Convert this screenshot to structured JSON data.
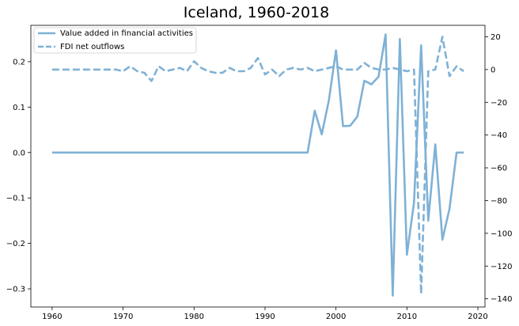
{
  "chart_data": {
    "type": "line",
    "title": "Iceland, 1960-2018",
    "colors": {
      "series": "#7fb1d6"
    },
    "legend_position": "top-left",
    "grid": false,
    "x_ticks": [
      1960,
      1970,
      1980,
      1990,
      2000,
      2010,
      2020
    ],
    "x_tick_labels": [
      "1960",
      "1970",
      "1980",
      "1990",
      "2000",
      "2010",
      "2020"
    ],
    "y_left_ticks": [
      -0.3,
      -0.2,
      -0.1,
      0.0,
      0.1,
      0.2
    ],
    "y_left_tick_labels": [
      "−0.3",
      "−0.2",
      "−0.1",
      "0.0",
      "0.1",
      "0.2"
    ],
    "y_right_ticks": [
      -140,
      -120,
      -100,
      -80,
      -60,
      -40,
      -20,
      0,
      20
    ],
    "y_right_tick_labels": [
      "−140",
      "−120",
      "−100",
      "−80",
      "−60",
      "−40",
      "−20",
      "0",
      "20"
    ],
    "xlim": [
      1957,
      2021
    ],
    "ylim_left": [
      -0.34,
      0.28
    ],
    "ylim_right": [
      -145,
      27
    ],
    "series": [
      {
        "name": "Value added in financial activities",
        "axis": "left",
        "style": "solid",
        "x": [
          1960,
          1961,
          1962,
          1963,
          1964,
          1965,
          1966,
          1967,
          1968,
          1969,
          1970,
          1971,
          1972,
          1973,
          1974,
          1975,
          1976,
          1977,
          1978,
          1979,
          1980,
          1981,
          1982,
          1983,
          1984,
          1985,
          1986,
          1987,
          1988,
          1989,
          1990,
          1991,
          1992,
          1993,
          1994,
          1995,
          1996,
          1997,
          1998,
          1999,
          2000,
          2001,
          2002,
          2003,
          2004,
          2005,
          2006,
          2007,
          2008,
          2009,
          2010,
          2011,
          2012,
          2013,
          2014,
          2015,
          2016,
          2017,
          2018
        ],
        "y": [
          0,
          0,
          0,
          0,
          0,
          0,
          0,
          0,
          0,
          0,
          0,
          0,
          0,
          0,
          0,
          0,
          0,
          0,
          0,
          0,
          0,
          0,
          0,
          0,
          0,
          0,
          0,
          0,
          0,
          0,
          0,
          0,
          0,
          0,
          0,
          0,
          0,
          0.092,
          0.04,
          0.115,
          0.225,
          0.058,
          0.059,
          0.079,
          0.158,
          0.15,
          0.167,
          0.26,
          -0.315,
          0.25,
          -0.225,
          -0.11,
          0.236,
          -0.15,
          0.018,
          -0.192,
          -0.123,
          0.0,
          0.0
        ]
      },
      {
        "name": "FDI net outflows",
        "axis": "right",
        "style": "dashed",
        "x": [
          1960,
          1961,
          1962,
          1963,
          1964,
          1965,
          1966,
          1967,
          1968,
          1969,
          1970,
          1971,
          1972,
          1973,
          1974,
          1975,
          1976,
          1977,
          1978,
          1979,
          1980,
          1981,
          1982,
          1983,
          1984,
          1985,
          1986,
          1987,
          1988,
          1989,
          1990,
          1991,
          1992,
          1993,
          1994,
          1995,
          1996,
          1997,
          1998,
          1999,
          2000,
          2001,
          2002,
          2003,
          2004,
          2005,
          2006,
          2007,
          2008,
          2009,
          2010,
          2011,
          2012,
          2013,
          2014,
          2015,
          2016,
          2017,
          2018
        ],
        "y": [
          0,
          0,
          0,
          0,
          0,
          0,
          0,
          0,
          0,
          0,
          -1,
          2,
          -1,
          -2,
          -7,
          2,
          -1,
          0,
          1,
          -1,
          5,
          1,
          -1,
          -2,
          -2,
          1,
          -1,
          -1,
          1,
          7,
          -3,
          0,
          -4,
          0,
          1,
          0,
          1,
          -1,
          0,
          1,
          2,
          0,
          0,
          0,
          4,
          1,
          0,
          0,
          1,
          0,
          -1,
          0,
          -137,
          -1,
          0,
          20,
          -4,
          2,
          -1
        ]
      }
    ]
  }
}
